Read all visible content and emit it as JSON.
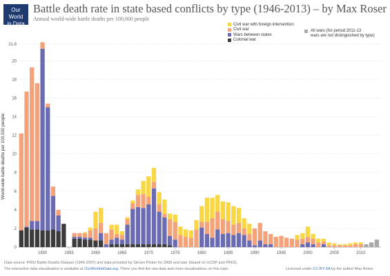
{
  "header": {
    "logo_line1": "Our World",
    "logo_line2": "in Data",
    "title": "Battle death rate in state based conflicts by type (1946-2013) – by Max Roser",
    "subtitle": "Annual world-wide battle deaths per 100,000 people"
  },
  "legend": {
    "items": [
      {
        "label": "Civil war with foreign intervention",
        "color": "#f9d644"
      },
      {
        "label": "Civil war",
        "color": "#f3a27a"
      },
      {
        "label": "Wars between states",
        "color": "#6a6bb3"
      },
      {
        "label": "Colonial war",
        "color": "#3b3b3b"
      }
    ],
    "all_wars": {
      "line1": "All wars (for period 2011-13",
      "line2": "wars are not distinguished by type)",
      "color": "#a8a8a8"
    }
  },
  "footer": {
    "line1": "Data source:  PRIO Battle Deaths Dataset (1946-2007) and data provided by Steven Pinker for 2008 and later (based on UCDP and PRIO).",
    "line2_pre": "The interactive data visualisation is available at ",
    "line2_link": "OurWorldinData.org",
    "line2_post": ". There you find the raw data and more visualisations on this topic.",
    "license_pre": "Licensed under ",
    "license_link": "CC-BY-SA",
    "license_post": " by the author Max Roser."
  },
  "chart_data": {
    "type": "bar",
    "stacked": true,
    "ylabel": "World-wide battle deaths per 100,000 people",
    "ylim": [
      0,
      21.8
    ],
    "yticks": [
      0,
      2,
      4,
      6,
      8,
      10,
      12,
      14,
      16,
      18,
      20,
      21.8
    ],
    "xticks": [
      1950,
      1955,
      1960,
      1965,
      1970,
      1975,
      1980,
      1985,
      1990,
      1995,
      2000,
      2005,
      2010
    ],
    "grid": true,
    "x": [
      1946,
      1947,
      1948,
      1949,
      1950,
      1951,
      1952,
      1953,
      1954,
      1955,
      1956,
      1957,
      1958,
      1959,
      1960,
      1961,
      1962,
      1963,
      1964,
      1965,
      1966,
      1967,
      1968,
      1969,
      1970,
      1971,
      1972,
      1973,
      1974,
      1975,
      1976,
      1977,
      1978,
      1979,
      1980,
      1981,
      1982,
      1983,
      1984,
      1985,
      1986,
      1987,
      1988,
      1989,
      1990,
      1991,
      1992,
      1993,
      1994,
      1995,
      1996,
      1997,
      1998,
      1999,
      2000,
      2001,
      2002,
      2003,
      2004,
      2005,
      2006,
      2007,
      2008,
      2009,
      2010,
      2011,
      2012,
      2013
    ],
    "series": [
      {
        "name": "Colonial war",
        "color": "#3b3b3b",
        "values": [
          1.8,
          2.1,
          1.9,
          1.9,
          1.8,
          1.8,
          1.9,
          1.7,
          2.5,
          0,
          0.9,
          0.9,
          0.8,
          0.8,
          0.7,
          0.7,
          0,
          0.3,
          0.3,
          0.3,
          0.3,
          0.3,
          0.3,
          0.3,
          0.3,
          0.3,
          0.3,
          0.3,
          0.2,
          0,
          0,
          0,
          0,
          0,
          0,
          0,
          0,
          0,
          0,
          0,
          0,
          0,
          0,
          0,
          0,
          0,
          0,
          0,
          0,
          0,
          0,
          0,
          0,
          0,
          0,
          0,
          0,
          0,
          0,
          0,
          0,
          0,
          0,
          0,
          0,
          0,
          0,
          0
        ]
      },
      {
        "name": "Wars between states",
        "color": "#6a6bb3",
        "values": [
          0,
          0.1,
          0.9,
          0.9,
          19.5,
          13.2,
          3.6,
          1.7,
          0,
          0,
          0.2,
          0.2,
          0.2,
          0.2,
          0,
          0.8,
          0.3,
          0.5,
          0.7,
          0.5,
          2.1,
          3.8,
          4.0,
          3.9,
          4.3,
          6.0,
          3.5,
          2.9,
          1.0,
          0.8,
          0,
          0,
          0,
          0,
          2.1,
          1.4,
          1.0,
          1.9,
          1.4,
          1.5,
          1.3,
          1.5,
          1.3,
          0.7,
          0.2,
          0.7,
          0.3,
          0.3,
          0,
          0,
          0,
          0,
          0,
          0.3,
          0.5,
          0.3,
          0,
          0.3,
          0,
          0,
          0,
          0,
          0,
          0,
          0,
          0,
          0,
          0
        ]
      },
      {
        "name": "Civil war",
        "color": "#f3a27a",
        "values": [
          10.4,
          14.5,
          16.5,
          14.8,
          0.7,
          0.4,
          1.0,
          0.6,
          0,
          0,
          0.4,
          0.4,
          0.5,
          0.8,
          1.3,
          1.1,
          1.2,
          1.1,
          0.4,
          0.5,
          0.6,
          0.6,
          1.3,
          1.5,
          0.8,
          0.7,
          0.8,
          0.4,
          1.8,
          1.9,
          1.3,
          1.1,
          1.0,
          1.9,
          0.6,
          1.3,
          2.1,
          1.9,
          1.6,
          1.3,
          1.1,
          1.1,
          0.7,
          0.7,
          1.8,
          1.9,
          1.4,
          1.1,
          1.1,
          1.2,
          1.0,
          0.9,
          0.8,
          0.6,
          0.6,
          0.6,
          0.5,
          0.3,
          0.2,
          0.2,
          0.2,
          0.2,
          0.2,
          0.3,
          0.3,
          0,
          0,
          0
        ]
      },
      {
        "name": "Civil war with foreign intervention",
        "color": "#f9d644",
        "values": [
          0,
          0,
          0,
          0,
          0,
          0,
          0,
          0,
          0,
          0,
          0,
          0,
          0.1,
          0.3,
          1.8,
          1.6,
          0,
          0.5,
          1.0,
          0.4,
          0.2,
          0.3,
          0.6,
          1.4,
          2.2,
          1.5,
          1.3,
          1.5,
          0.6,
          0.8,
          0.9,
          0.8,
          0.8,
          1.0,
          1.7,
          2.6,
          2.2,
          1.8,
          1.9,
          2.0,
          2.0,
          1.6,
          1.1,
          1.1,
          0,
          0,
          0,
          0,
          0,
          0,
          0,
          0,
          0.5,
          0.6,
          1.1,
          0.5,
          0.4,
          0.3,
          0.3,
          0.2,
          0.1,
          0.1,
          0.2,
          0.2,
          0.2,
          0,
          0,
          0
        ]
      },
      {
        "name": "All wars",
        "color": "#a8a8a8",
        "values": [
          0,
          0,
          0,
          0,
          0,
          0,
          0,
          0,
          0,
          0,
          0,
          0,
          0,
          0,
          0,
          0,
          0,
          0,
          0,
          0,
          0,
          0,
          0,
          0,
          0,
          0,
          0,
          0,
          0,
          0,
          0,
          0,
          0,
          0,
          0,
          0,
          0,
          0,
          0,
          0,
          0,
          0,
          0,
          0,
          0,
          0,
          0,
          0,
          0,
          0,
          0,
          0,
          0,
          0,
          0,
          0,
          0,
          0,
          0,
          0,
          0,
          0,
          0,
          0,
          0,
          0.3,
          0.5,
          0.8
        ]
      }
    ]
  }
}
